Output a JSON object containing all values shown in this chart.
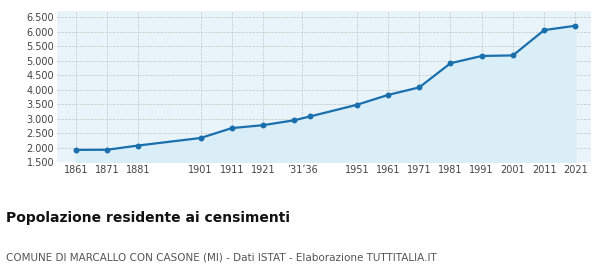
{
  "years": [
    1861,
    1871,
    1881,
    1901,
    1911,
    1921,
    1931,
    1936,
    1951,
    1961,
    1971,
    1981,
    1991,
    2001,
    2011,
    2021
  ],
  "population": [
    1930,
    1935,
    2080,
    2340,
    2680,
    2780,
    2950,
    3080,
    3480,
    3820,
    4080,
    4910,
    5160,
    5180,
    6050,
    6200
  ],
  "yticks": [
    1500,
    2000,
    2500,
    3000,
    3500,
    4000,
    4500,
    5000,
    5500,
    6000,
    6500
  ],
  "ylim": [
    1500,
    6700
  ],
  "xlim": [
    1855,
    2026
  ],
  "line_color": "#1a6fad",
  "fill_color": "#daeef8",
  "marker_color": "#1a6fad",
  "grid_color": "#bbbbbb",
  "bg_color": "#ffffff",
  "plot_bg_color": "#e8f4fa",
  "title": "Popolazione residente ai censimenti",
  "subtitle": "COMUNE DI MARCALLO CON CASONE (MI) - Dati ISTAT - Elaborazione TUTTITALIA.IT",
  "title_fontsize": 10,
  "subtitle_fontsize": 7.5
}
